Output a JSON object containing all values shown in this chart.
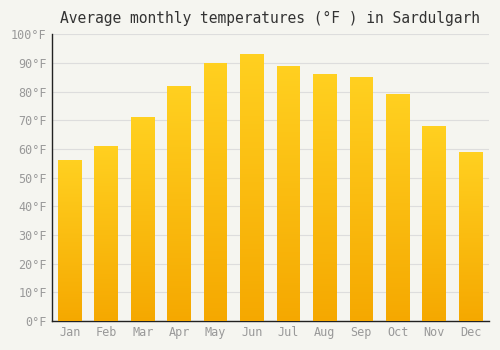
{
  "title": "Average monthly temperatures (°F ) in Sardulgarh",
  "months": [
    "Jan",
    "Feb",
    "Mar",
    "Apr",
    "May",
    "Jun",
    "Jul",
    "Aug",
    "Sep",
    "Oct",
    "Nov",
    "Dec"
  ],
  "values": [
    56,
    61,
    71,
    82,
    90,
    93,
    89,
    86,
    85,
    79,
    68,
    59
  ],
  "bar_color_top": "#FFD020",
  "bar_color_bottom": "#F5A800",
  "background_color": "#F5F5F0",
  "grid_color": "#DDDDDD",
  "ylim": [
    0,
    100
  ],
  "ytick_step": 10,
  "title_fontsize": 10.5,
  "tick_fontsize": 8.5,
  "tick_font_color": "#999999",
  "spine_color": "#222222"
}
